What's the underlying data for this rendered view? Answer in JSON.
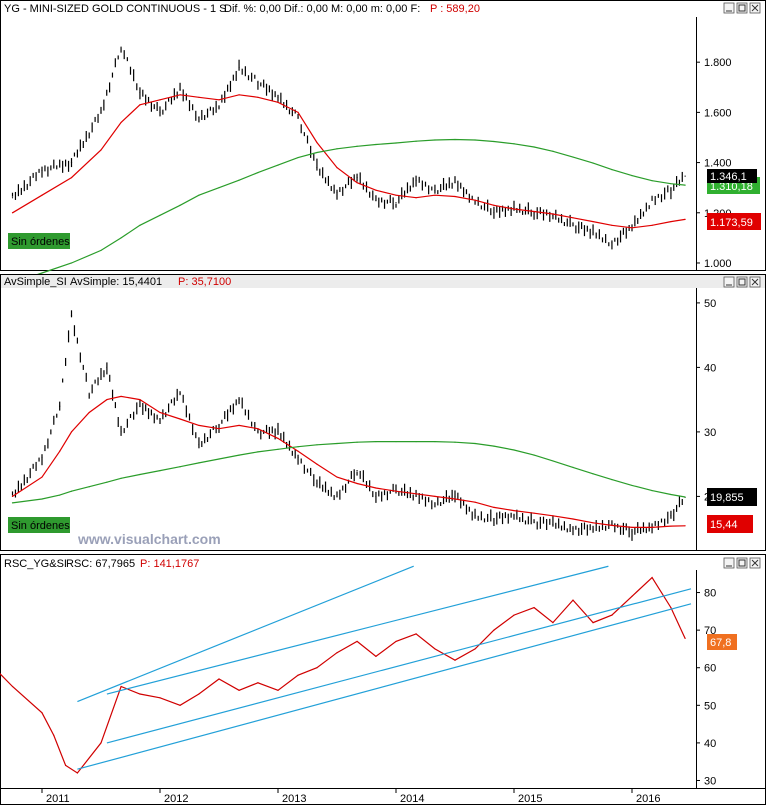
{
  "colors": {
    "price": "#000000",
    "ma_red": "#e00000",
    "ma_green": "#2a9d2a",
    "rsc": "#d00000",
    "rsc_up": "#1060d0",
    "trendline": "#22a0d8",
    "sin_ordenes_bg": "#2f9a2f",
    "watermark": "#9aa0b8"
  },
  "panes": {
    "top": {
      "title": "YG - MINI-SIZED GOLD CONTINUOUS - 1 S",
      "stats": "Dif. %: 0,00  Dif.: 0,00  M: 0,00  m: 0,00  F:",
      "f_value": "P : 589,20",
      "sin_ordenes": "Sin órdenes",
      "badges": {
        "price": "1.346,1",
        "green_ma": "1.310,18",
        "red_ma": "1.173,59"
      }
    },
    "middle": {
      "title": "AvSimple_SI",
      "stats": "AvSimple: 15,4401",
      "p_value": "P: 35,7100",
      "sin_ordenes": "Sin órdenes",
      "watermark": "www.visualchart.com",
      "badges": {
        "price": "19,855",
        "red_ma": "15,44"
      }
    },
    "bottom": {
      "title": "RSC_YG&SI",
      "stats": "RSC: 67,7965",
      "p_value": "P: 141,1767",
      "badges": {
        "rsc": "67,8"
      }
    }
  },
  "chart_data": [
    {
      "type": "line",
      "title": "YG - MINI-SIZED GOLD CONTINUOUS - 1 S",
      "x": [
        2010.75,
        2011.0,
        2011.25,
        2011.5,
        2011.67,
        2011.83,
        2012.0,
        2012.17,
        2012.33,
        2012.5,
        2012.67,
        2012.83,
        2013.0,
        2013.17,
        2013.33,
        2013.5,
        2013.67,
        2013.83,
        2014.0,
        2014.17,
        2014.33,
        2014.5,
        2014.67,
        2014.83,
        2015.0,
        2015.17,
        2015.33,
        2015.5,
        2015.67,
        2015.83,
        2016.0,
        2016.17,
        2016.33,
        2016.45
      ],
      "series": [
        {
          "values": [
            1260,
            1370,
            1400,
            1600,
            1860,
            1680,
            1600,
            1690,
            1580,
            1620,
            1780,
            1720,
            1660,
            1580,
            1380,
            1280,
            1340,
            1250,
            1240,
            1330,
            1290,
            1320,
            1250,
            1200,
            1220,
            1200,
            1190,
            1150,
            1120,
            1080,
            1140,
            1250,
            1290,
            1346.1
          ]
        },
        {
          "values": [
            1200,
            1270,
            1340,
            1450,
            1560,
            1630,
            1650,
            1670,
            1660,
            1650,
            1670,
            1660,
            1640,
            1600,
            1480,
            1380,
            1320,
            1290,
            1270,
            1260,
            1270,
            1265,
            1250,
            1230,
            1215,
            1205,
            1195,
            1180,
            1165,
            1150,
            1140,
            1150,
            1165,
            1173.59
          ]
        },
        {
          "values": [
            920,
            960,
            1000,
            1050,
            1100,
            1150,
            1190,
            1230,
            1270,
            1300,
            1330,
            1360,
            1390,
            1420,
            1440,
            1455,
            1465,
            1472,
            1478,
            1485,
            1490,
            1492,
            1490,
            1484,
            1475,
            1462,
            1445,
            1422,
            1398,
            1372,
            1348,
            1328,
            1316,
            1310.18
          ]
        }
      ],
      "ylim": [
        980,
        1980
      ],
      "yticks": [
        "1.000",
        "1.200",
        "1.400",
        "1.600",
        "1.800"
      ],
      "ytick_values": [
        1000,
        1200,
        1400,
        1600,
        1800
      ],
      "grid": false
    },
    {
      "type": "line",
      "title": "AvSimple_SI",
      "x": [
        2010.75,
        2011.0,
        2011.15,
        2011.25,
        2011.4,
        2011.55,
        2011.67,
        2011.83,
        2012.0,
        2012.17,
        2012.33,
        2012.5,
        2012.67,
        2012.83,
        2013.0,
        2013.17,
        2013.33,
        2013.5,
        2013.67,
        2013.83,
        2014.0,
        2014.17,
        2014.33,
        2014.5,
        2014.67,
        2014.83,
        2015.0,
        2015.17,
        2015.33,
        2015.5,
        2015.67,
        2015.83,
        2016.0,
        2016.17,
        2016.33,
        2016.45
      ],
      "series": [
        {
          "values": [
            20,
            26,
            34,
            48,
            36,
            40,
            30,
            34,
            32,
            36,
            28,
            31,
            35,
            30,
            30,
            26,
            22,
            20,
            24,
            20,
            21,
            20,
            19,
            20,
            17,
            16.5,
            17,
            16,
            15.7,
            15,
            14.9,
            15.6,
            14.5,
            15.2,
            17,
            19.855
          ]
        },
        {
          "values": [
            20,
            23,
            27,
            30,
            33,
            35,
            35.5,
            35,
            33,
            32,
            31,
            30.5,
            31,
            30.5,
            29,
            27,
            25,
            23,
            22,
            21.3,
            20.8,
            20.4,
            20,
            19.6,
            19.1,
            18.3,
            17.8,
            17.4,
            17,
            16.5,
            15.9,
            15.5,
            15.2,
            15.2,
            15.4,
            15.44
          ]
        },
        {
          "values": [
            19,
            19.6,
            20.2,
            20.8,
            21.5,
            22.2,
            22.8,
            23.4,
            24,
            24.6,
            25.2,
            25.8,
            26.4,
            26.9,
            27.3,
            27.7,
            28,
            28.2,
            28.4,
            28.5,
            28.5,
            28.5,
            28.5,
            28.4,
            28.2,
            27.8,
            27.2,
            26.4,
            25.5,
            24.5,
            23.5,
            22.6,
            21.7,
            20.9,
            20.3,
            19.9
          ]
        }
      ],
      "ylim": [
        12,
        52
      ],
      "yticks": [
        "20",
        "30",
        "40",
        "50"
      ],
      "ytick_values": [
        20,
        30,
        40,
        50
      ],
      "grid": false
    },
    {
      "type": "line",
      "title": "RSC_YG&SI",
      "x": [
        2010.5,
        2010.75,
        2011.0,
        2011.1,
        2011.2,
        2011.3,
        2011.5,
        2011.67,
        2011.83,
        2012.0,
        2012.17,
        2012.33,
        2012.5,
        2012.67,
        2012.83,
        2013.0,
        2013.17,
        2013.33,
        2013.5,
        2013.67,
        2013.83,
        2014.0,
        2014.17,
        2014.33,
        2014.5,
        2014.67,
        2014.83,
        2015.0,
        2015.17,
        2015.33,
        2015.5,
        2015.67,
        2015.83,
        2016.0,
        2016.17,
        2016.33,
        2016.45
      ],
      "series": [
        {
          "values": [
            63,
            55,
            48,
            42,
            34,
            32,
            40,
            55,
            53,
            52,
            50,
            53,
            57,
            54,
            56,
            54,
            58,
            60,
            64,
            67,
            63,
            67,
            69,
            65,
            62,
            65,
            70,
            74,
            76,
            72,
            78,
            72,
            74,
            79,
            84,
            76,
            67.8
          ]
        }
      ],
      "ylim": [
        28,
        86
      ],
      "yticks": [
        "30",
        "40",
        "50",
        "60",
        "70",
        "80"
      ],
      "ytick_values": [
        30,
        40,
        50,
        60,
        70,
        80
      ],
      "xticks": [
        "2011",
        "2012",
        "2013",
        "2014",
        "2015",
        "2016"
      ],
      "grid": false
    }
  ]
}
